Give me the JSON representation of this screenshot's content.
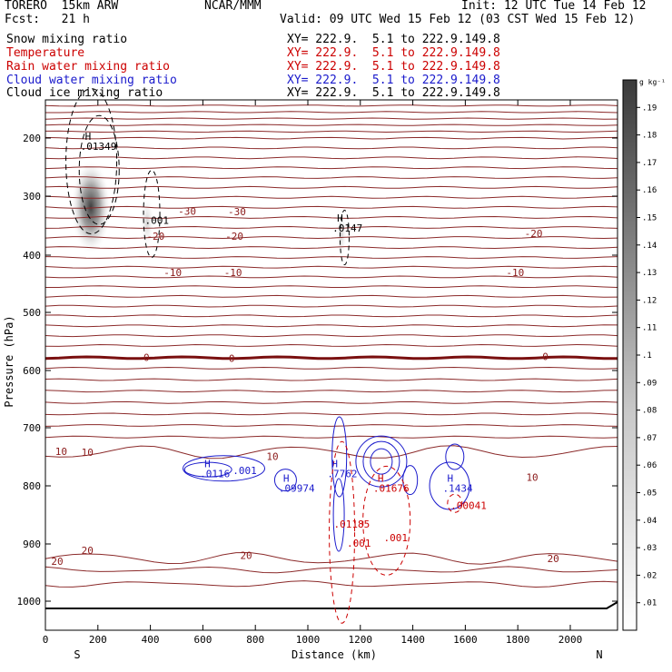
{
  "header": {
    "model": "TORERO  15km ARW",
    "source": "NCAR/MMM",
    "init": "Init: 12 UTC Tue 14 Feb 12",
    "fcst": "Fcst:   21 h",
    "valid": "Valid: 09 UTC Wed 15 Feb 12 (03 CST Wed 15 Feb 12)"
  },
  "fields": [
    {
      "name": "Snow mixing ratio",
      "color": "#000000",
      "xy": ""
    },
    {
      "name": "Temperature",
      "color": "#cc0000",
      "xy": "XY= 222.9.  5.1 to 222.9.149.8"
    },
    {
      "name": "Rain water mixing ratio",
      "color": "#cc0000",
      "xy": "XY= 222.9.  5.1 to 222.9.149.8"
    },
    {
      "name": "Cloud water mixing ratio",
      "color": "#1a1acc",
      "xy": "XY= 222.9.  5.1 to 222.9.149.8"
    },
    {
      "name": "Cloud ice mixing ratio",
      "color": "#000000",
      "xy": "XY= 222.9.  5.1 to 222.9.149.8"
    }
  ],
  "first_xy": "XY= 222.9.  5.1 to 222.9.149.8",
  "colorbar_unit": "g kg⁻¹",
  "chart_data": {
    "type": "cross-section contour",
    "xlabel": "Distance (km)",
    "ylabel": "Pressure (hPa)",
    "x_ticks": [
      0,
      200,
      400,
      600,
      800,
      1000,
      1200,
      1400,
      1600,
      1800,
      2000
    ],
    "x_range": [
      0,
      2180
    ],
    "y_ticks": [
      200,
      300,
      400,
      500,
      600,
      700,
      800,
      900,
      1000
    ],
    "y_range": [
      100,
      1050
    ],
    "endpoints": {
      "left": "S",
      "right": "N"
    },
    "colorbar_ticks": [
      ".01",
      ".02",
      ".03",
      ".04",
      ".05",
      ".06",
      ".07",
      ".08",
      ".09",
      ".1",
      ".11",
      ".12",
      ".13",
      ".14",
      ".15",
      ".16",
      ".17",
      ".18",
      ".19"
    ],
    "temperature_isotherms": [
      {
        "label": "-30",
        "p": 330
      },
      {
        "label": "-20",
        "p": 370
      },
      {
        "label": "-10",
        "p": 430
      },
      {
        "label": "0",
        "p": 578
      },
      {
        "label": "10",
        "p": 760
      },
      {
        "label": "20",
        "p": 925
      }
    ],
    "isotherm_labels": [
      {
        "text": "-30",
        "x": 540,
        "p": 325
      },
      {
        "text": "-30",
        "x": 730,
        "p": 326
      },
      {
        "text": "-20",
        "x": 420,
        "p": 368
      },
      {
        "text": "-20",
        "x": 720,
        "p": 368
      },
      {
        "text": "-20",
        "x": 1860,
        "p": 363
      },
      {
        "text": "-10",
        "x": 485,
        "p": 430
      },
      {
        "text": "-10",
        "x": 715,
        "p": 430
      },
      {
        "text": "-10",
        "x": 1790,
        "p": 430
      },
      {
        "text": "0",
        "x": 385,
        "p": 577
      },
      {
        "text": "0",
        "x": 710,
        "p": 579
      },
      {
        "text": "0",
        "x": 1905,
        "p": 576
      },
      {
        "text": "10",
        "x": 60,
        "p": 741
      },
      {
        "text": "10",
        "x": 160,
        "p": 742
      },
      {
        "text": "10",
        "x": 865,
        "p": 749
      },
      {
        "text": "10",
        "x": 1855,
        "p": 785
      },
      {
        "text": "20",
        "x": 45,
        "p": 930
      },
      {
        "text": "20",
        "x": 160,
        "p": 911
      },
      {
        "text": "20",
        "x": 765,
        "p": 920
      },
      {
        "text": "20",
        "x": 1935,
        "p": 925
      }
    ],
    "maxima_labels": [
      {
        "mark": "H",
        "value": ".01349",
        "x": 165,
        "p": 220,
        "color": "#000000"
      },
      {
        "mark": "",
        "value": ".001",
        "x": 410,
        "p": 347,
        "color": "#000000"
      },
      {
        "mark": "H",
        "value": ".0147",
        "x": 1125,
        "p": 360,
        "color": "#000000"
      },
      {
        "mark": "H",
        "value": ".0116",
        "x": 620,
        "p": 785,
        "color": "#1a1acc"
      },
      {
        "mark": "",
        "value": ".001",
        "x": 745,
        "p": 780,
        "color": "#1a1acc"
      },
      {
        "mark": "H",
        "value": ".09974",
        "x": 920,
        "p": 810,
        "color": "#1a1acc"
      },
      {
        "mark": "H",
        "value": ".7762",
        "x": 1105,
        "p": 785,
        "color": "#1a1acc"
      },
      {
        "mark": "H",
        "value": ".1434",
        "x": 1545,
        "p": 810,
        "color": "#1a1acc"
      },
      {
        "mark": "H",
        "value": ".01676",
        "x": 1280,
        "p": 810,
        "color": "#cc0000"
      },
      {
        "mark": "",
        "value": ".01185",
        "x": 1130,
        "p": 872,
        "color": "#cc0000"
      },
      {
        "mark": "",
        "value": ".001",
        "x": 1180,
        "p": 905,
        "color": "#cc0000"
      },
      {
        "mark": "",
        "value": ".001",
        "x": 1320,
        "p": 895,
        "color": "#cc0000"
      },
      {
        "mark": "",
        "value": ".00041",
        "x": 1575,
        "p": 840,
        "color": "#cc0000"
      }
    ],
    "grid": false,
    "legend": "top-left"
  }
}
